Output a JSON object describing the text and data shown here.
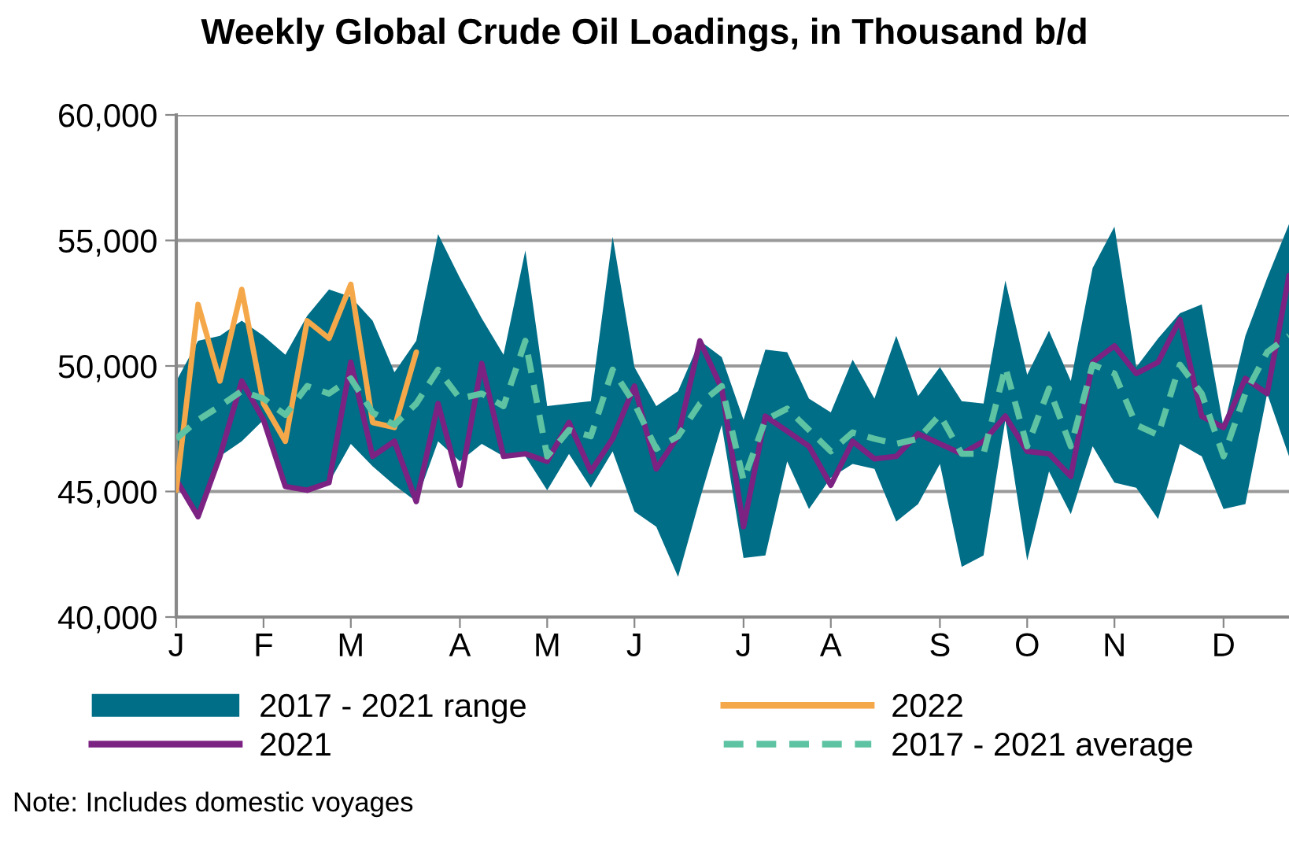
{
  "chart_data": {
    "type": "line",
    "title": "Weekly Global Crude Oil Loadings, in Thousand b/d",
    "categories": [
      "J",
      null,
      null,
      null,
      "F",
      null,
      null,
      null,
      "M",
      null,
      null,
      null,
      null,
      "A",
      null,
      null,
      null,
      "M",
      null,
      null,
      null,
      "J",
      null,
      null,
      null,
      null,
      "J",
      null,
      null,
      null,
      "A",
      null,
      null,
      null,
      null,
      "S",
      null,
      null,
      null,
      "O",
      null,
      null,
      null,
      "N",
      null,
      null,
      null,
      null,
      "D",
      null,
      null,
      null
    ],
    "ylim": [
      40000,
      60000
    ],
    "yticks": [
      {
        "value": 40000,
        "label": "40,000"
      },
      {
        "value": 45000,
        "label": "45,000"
      },
      {
        "value": 50000,
        "label": "50,000"
      },
      {
        "value": 55000,
        "label": "55,000"
      },
      {
        "value": 60000,
        "label": "60,000"
      }
    ],
    "grid": "y",
    "legend": "bottom",
    "series": [
      {
        "name": "2017 - 2021 range",
        "color": "#006e87",
        "values": [
          null,
          null,
          null,
          null,
          null,
          null,
          null,
          null,
          null,
          null,
          null,
          null,
          null,
          null,
          null,
          null,
          null,
          null,
          null,
          null,
          null,
          null,
          null,
          null,
          null,
          null,
          null,
          null,
          null,
          null,
          null,
          null,
          null,
          null,
          null,
          null,
          null,
          null,
          null,
          null,
          null,
          null,
          null,
          null,
          null,
          null,
          null,
          null,
          null,
          null,
          null,
          null
        ],
        "upper": [
          49400,
          51000,
          51200,
          51800,
          51200,
          50450,
          52000,
          53050,
          52750,
          51800,
          49750,
          51000,
          55250,
          53500,
          51900,
          50450,
          54600,
          48400,
          48500,
          48600,
          55150,
          49950,
          48400,
          49000,
          51000,
          50350,
          47850,
          50650,
          50550,
          48700,
          48150,
          50250,
          48700,
          51200,
          48800,
          49950,
          48600,
          48500,
          53400,
          49650,
          51400,
          49400,
          53900,
          55550,
          49950,
          51100,
          52100,
          52450,
          47550,
          51200,
          53500,
          55650
        ],
        "lower": [
          45450,
          44100,
          46400,
          47000,
          47850,
          45250,
          45050,
          45350,
          46900,
          46000,
          45250,
          44600,
          47000,
          46200,
          46900,
          46400,
          46400,
          45050,
          46500,
          45150,
          46600,
          44200,
          43600,
          41600,
          44700,
          47650,
          42350,
          42450,
          46200,
          44300,
          45550,
          46100,
          45900,
          43800,
          44500,
          46100,
          42000,
          42450,
          47850,
          42250,
          45800,
          44100,
          46800,
          45350,
          45150,
          43900,
          46900,
          46400,
          44300,
          44500,
          48900,
          46400
        ]
      },
      {
        "name": "2021",
        "color": "#7b2282",
        "line_style": "solid",
        "values": [
          45460,
          44000,
          46400,
          49400,
          47850,
          45200,
          45050,
          45350,
          50150,
          46400,
          47000,
          44600,
          48500,
          45250,
          50100,
          46400,
          46500,
          46200,
          47750,
          45800,
          47100,
          49200,
          45900,
          47200,
          51000,
          49100,
          43600,
          48000,
          47400,
          46800,
          45250,
          47000,
          46300,
          46400,
          47300,
          46900,
          46500,
          47000,
          48000,
          46600,
          46500,
          45600,
          50150,
          50800,
          49700,
          50150,
          51850,
          48000,
          47550,
          49500,
          48900,
          53600
        ]
      },
      {
        "name": "2022",
        "color": "#f5a84a",
        "line_style": "solid",
        "values": [
          45050,
          52450,
          49400,
          53050,
          48500,
          47000,
          51800,
          51100,
          53250,
          47750,
          47550,
          50550,
          null,
          null,
          null,
          null,
          null,
          null,
          null,
          null,
          null,
          null,
          null,
          null,
          null,
          null,
          null,
          null,
          null,
          null,
          null,
          null,
          null,
          null,
          null,
          null,
          null,
          null,
          null,
          null,
          null,
          null,
          null,
          null,
          null,
          null,
          null,
          null,
          null,
          null,
          null,
          null
        ]
      },
      {
        "name": "2017 - 2021 average",
        "color": "#5ec3a2",
        "line_style": "dashed",
        "values": [
          47100,
          47850,
          48400,
          49000,
          48700,
          48050,
          49200,
          48900,
          49500,
          48150,
          47650,
          48500,
          49850,
          48700,
          48900,
          48400,
          51000,
          46400,
          47450,
          47200,
          49850,
          48500,
          46700,
          47200,
          48500,
          49200,
          45450,
          47850,
          48300,
          47450,
          46600,
          47350,
          47100,
          46900,
          47100,
          48050,
          46500,
          46500,
          49950,
          46800,
          49100,
          46800,
          50050,
          49700,
          47650,
          47250,
          50050,
          48900,
          46400,
          48900,
          50550,
          51200
        ]
      }
    ],
    "annotations": [
      "Note: Includes domestic voyages"
    ]
  }
}
